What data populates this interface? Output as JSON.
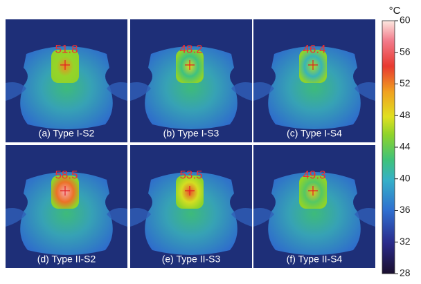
{
  "panels": [
    {
      "label": "(a) Type I-S2",
      "value": 51.8
    },
    {
      "label": "(b) Type I-S3",
      "value": 48.2
    },
    {
      "label": "(c) Type I-S4",
      "value": 46.4
    },
    {
      "label": "(d) Type II-S2",
      "value": 58.5
    },
    {
      "label": "(e) Type II-S3",
      "value": 53.5
    },
    {
      "label": "(f) Type II-S4",
      "value": 49.3
    }
  ],
  "colorbar": {
    "unit": "°C",
    "ticks": [
      28,
      32,
      36,
      40,
      44,
      48,
      52,
      56,
      60
    ]
  }
}
